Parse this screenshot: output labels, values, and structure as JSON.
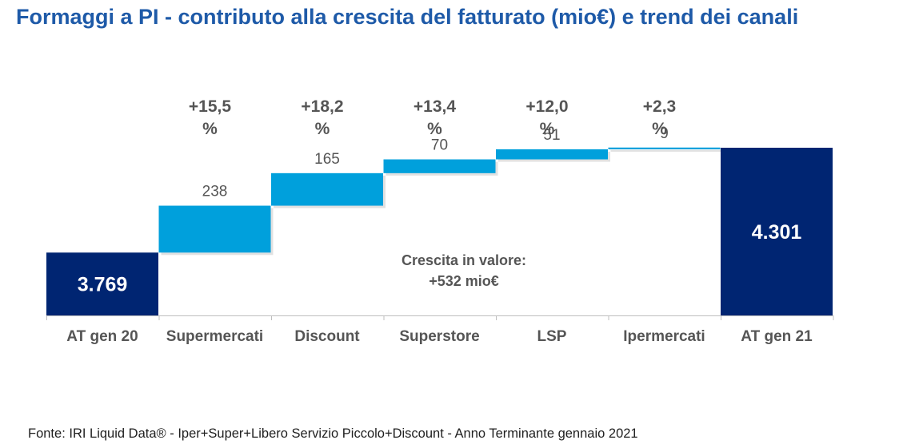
{
  "title": "Formaggi a PI - contributo alla crescita del fatturato (mio€) e trend dei canali",
  "source": "Fonte: IRI Liquid Data® - Iper+Super+Libero Servizio Piccolo+Discount - Anno Terminante gennaio 2021",
  "annotation": {
    "line1": "Crescita in valore:",
    "line2": "+532 mio€"
  },
  "colors": {
    "total": "#002572",
    "increment": "#00a0dc",
    "title": "#1e5aa8",
    "label": "#555555"
  },
  "chart_data": {
    "type": "bar",
    "subtype": "waterfall",
    "categories": [
      "AT gen 20",
      "Supermercati",
      "Discount",
      "Superstore",
      "LSP",
      "Ipermercati",
      "AT gen 21"
    ],
    "values": [
      3769,
      238,
      165,
      70,
      51,
      9,
      4301
    ],
    "kinds": [
      "total",
      "increment",
      "increment",
      "increment",
      "increment",
      "increment",
      "total"
    ],
    "value_labels": [
      "3.769",
      "238",
      "165",
      "70",
      "51",
      "9",
      "4.301"
    ],
    "growth_labels": [
      "",
      "+15,5\n%",
      "+18,2\n%",
      "+13,4\n%",
      "+12,0\n%",
      "+2,3\n%",
      ""
    ],
    "ylim": [
      3450,
      4301
    ]
  }
}
